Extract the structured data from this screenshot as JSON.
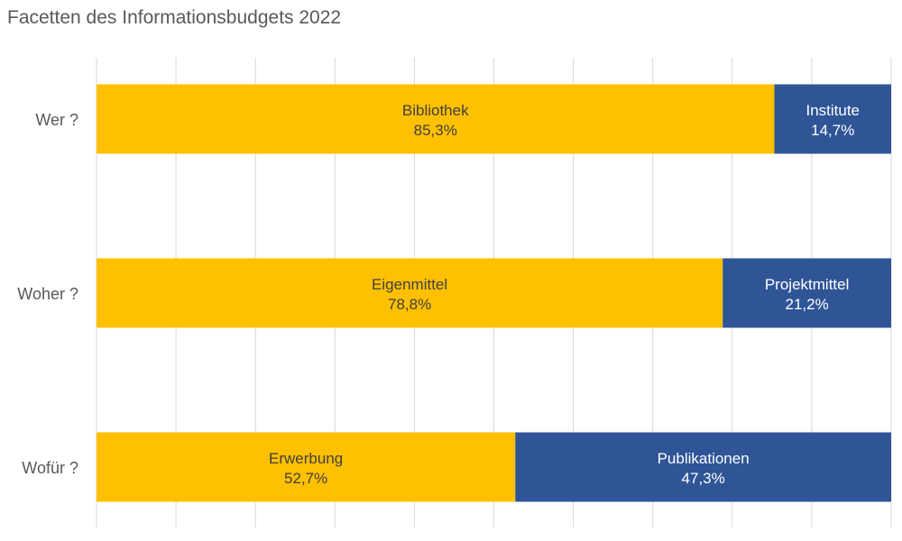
{
  "chart_data": {
    "type": "bar",
    "orientation": "horizontal",
    "stacked": true,
    "percent_stacked": true,
    "title": "Facetten des Informationsbudgets 2022",
    "xlabel": "",
    "ylabel": "",
    "xlim": [
      0,
      100
    ],
    "grid": true,
    "legend": "none",
    "colors": [
      "#FFC000",
      "#2F5597"
    ],
    "categories": [
      "Wer ?",
      "Woher ?",
      "Wofür ?"
    ],
    "bars": [
      {
        "category": "Wer ?",
        "segments": [
          {
            "label": "Bibliothek",
            "value": 85.3,
            "value_label": "85,3%"
          },
          {
            "label": "Institute",
            "value": 14.7,
            "value_label": "14,7%"
          }
        ]
      },
      {
        "category": "Woher ?",
        "segments": [
          {
            "label": "Eigenmittel",
            "value": 78.8,
            "value_label": "78,8%"
          },
          {
            "label": "Projektmittel",
            "value": 21.2,
            "value_label": "21,2%"
          }
        ]
      },
      {
        "category": "Wofür ?",
        "segments": [
          {
            "label": "Erwerbung",
            "value": 52.7,
            "value_label": "52,7%"
          },
          {
            "label": "Publikationen",
            "value": 47.3,
            "value_label": "47,3%"
          }
        ]
      }
    ]
  }
}
